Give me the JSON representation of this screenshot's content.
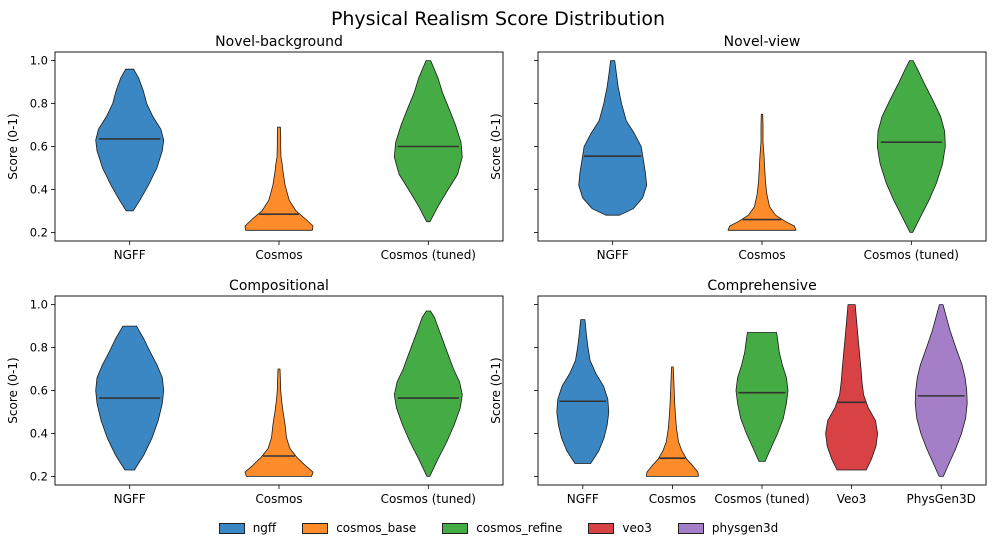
{
  "chart_data": {
    "type": "violin",
    "title": "Physical Realism Score Distribution",
    "ylabel": "Score (0-1)",
    "legend": {
      "placement": "bottom-center",
      "entries": [
        {
          "label": "ngff",
          "color": "#3a87c3"
        },
        {
          "label": "cosmos_base",
          "color": "#ff8c2a"
        },
        {
          "label": "cosmos_refine",
          "color": "#45ab45"
        },
        {
          "label": "veo3",
          "color": "#d94244"
        },
        {
          "label": "physgen3d",
          "color": "#a47ec7"
        }
      ]
    },
    "subplots": [
      {
        "title": "Novel-background",
        "ylim": [
          0.16,
          1.04
        ],
        "yticks": [
          "0.2",
          "0.4",
          "0.6",
          "0.8",
          "1.0"
        ],
        "show_ytick_labels": true,
        "categories": [
          "NGFF",
          "Cosmos",
          "Cosmos (tuned)"
        ],
        "violins": [
          {
            "label": "NGFF",
            "series": "ngff",
            "color": "#3a87c3",
            "median": 0.635,
            "profile": [
              [
                0.3,
                0.1
              ],
              [
                0.35,
                0.3
              ],
              [
                0.42,
                0.55
              ],
              [
                0.5,
                0.8
              ],
              [
                0.58,
                0.96
              ],
              [
                0.63,
                1.0
              ],
              [
                0.68,
                0.92
              ],
              [
                0.74,
                0.68
              ],
              [
                0.8,
                0.5
              ],
              [
                0.86,
                0.4
              ],
              [
                0.92,
                0.26
              ],
              [
                0.96,
                0.12
              ]
            ]
          },
          {
            "label": "Cosmos",
            "series": "cosmos_base",
            "color": "#ff8c2a",
            "median": 0.285,
            "profile": [
              [
                0.21,
                0.98
              ],
              [
                0.23,
                1.0
              ],
              [
                0.26,
                0.8
              ],
              [
                0.3,
                0.5
              ],
              [
                0.35,
                0.3
              ],
              [
                0.42,
                0.18
              ],
              [
                0.48,
                0.12
              ],
              [
                0.52,
                0.09
              ],
              [
                0.55,
                0.06
              ],
              [
                0.6,
                0.05
              ],
              [
                0.65,
                0.05
              ],
              [
                0.69,
                0.04
              ]
            ]
          },
          {
            "label": "Cosmos (tuned)",
            "series": "cosmos_refine",
            "color": "#45ab45",
            "median": 0.6,
            "profile": [
              [
                0.25,
                0.05
              ],
              [
                0.32,
                0.28
              ],
              [
                0.4,
                0.58
              ],
              [
                0.47,
                0.86
              ],
              [
                0.55,
                1.0
              ],
              [
                0.62,
                0.96
              ],
              [
                0.7,
                0.8
              ],
              [
                0.78,
                0.6
              ],
              [
                0.85,
                0.42
              ],
              [
                0.92,
                0.28
              ],
              [
                1.0,
                0.07
              ]
            ]
          }
        ]
      },
      {
        "title": "Novel-view",
        "ylim": [
          0.16,
          1.04
        ],
        "yticks": [
          "0.2",
          "0.4",
          "0.6",
          "0.8",
          "1.0"
        ],
        "show_ytick_labels": false,
        "categories": [
          "NGFF",
          "Cosmos",
          "Cosmos (tuned)"
        ],
        "violins": [
          {
            "label": "NGFF",
            "series": "ngff",
            "color": "#3a87c3",
            "median": 0.555,
            "profile": [
              [
                0.28,
                0.2
              ],
              [
                0.31,
                0.6
              ],
              [
                0.36,
                0.88
              ],
              [
                0.42,
                1.0
              ],
              [
                0.48,
                0.96
              ],
              [
                0.54,
                0.9
              ],
              [
                0.6,
                0.84
              ],
              [
                0.66,
                0.64
              ],
              [
                0.72,
                0.4
              ],
              [
                0.8,
                0.26
              ],
              [
                0.88,
                0.16
              ],
              [
                0.95,
                0.1
              ],
              [
                1.0,
                0.06
              ]
            ]
          },
          {
            "label": "Cosmos",
            "series": "cosmos_base",
            "color": "#ff8c2a",
            "median": 0.26,
            "profile": [
              [
                0.21,
                1.0
              ],
              [
                0.23,
                0.95
              ],
              [
                0.25,
                0.7
              ],
              [
                0.28,
                0.4
              ],
              [
                0.32,
                0.22
              ],
              [
                0.38,
                0.14
              ],
              [
                0.44,
                0.1
              ],
              [
                0.5,
                0.08
              ],
              [
                0.56,
                0.06
              ],
              [
                0.62,
                0.03
              ],
              [
                0.7,
                0.03
              ],
              [
                0.75,
                0.02
              ]
            ]
          },
          {
            "label": "Cosmos (tuned)",
            "series": "cosmos_refine",
            "color": "#45ab45",
            "median": 0.62,
            "profile": [
              [
                0.2,
                0.04
              ],
              [
                0.27,
                0.26
              ],
              [
                0.35,
                0.52
              ],
              [
                0.43,
                0.74
              ],
              [
                0.52,
                0.92
              ],
              [
                0.6,
                1.0
              ],
              [
                0.67,
                0.98
              ],
              [
                0.74,
                0.86
              ],
              [
                0.82,
                0.62
              ],
              [
                0.9,
                0.36
              ],
              [
                0.96,
                0.18
              ],
              [
                1.0,
                0.05
              ]
            ]
          }
        ]
      },
      {
        "title": "Compositional",
        "ylim": [
          0.16,
          1.04
        ],
        "yticks": [
          "0.2",
          "0.4",
          "0.6",
          "0.8",
          "1.0"
        ],
        "show_ytick_labels": true,
        "categories": [
          "NGFF",
          "Cosmos",
          "Cosmos (tuned)"
        ],
        "violins": [
          {
            "label": "NGFF",
            "series": "ngff",
            "color": "#3a87c3",
            "median": 0.565,
            "profile": [
              [
                0.23,
                0.14
              ],
              [
                0.3,
                0.42
              ],
              [
                0.38,
                0.66
              ],
              [
                0.46,
                0.84
              ],
              [
                0.54,
                0.96
              ],
              [
                0.6,
                1.0
              ],
              [
                0.66,
                0.96
              ],
              [
                0.72,
                0.8
              ],
              [
                0.78,
                0.6
              ],
              [
                0.84,
                0.42
              ],
              [
                0.9,
                0.2
              ]
            ]
          },
          {
            "label": "Cosmos",
            "series": "cosmos_base",
            "color": "#ff8c2a",
            "median": 0.295,
            "profile": [
              [
                0.2,
                0.96
              ],
              [
                0.22,
                1.0
              ],
              [
                0.25,
                0.78
              ],
              [
                0.29,
                0.52
              ],
              [
                0.33,
                0.32
              ],
              [
                0.38,
                0.22
              ],
              [
                0.44,
                0.18
              ],
              [
                0.5,
                0.12
              ],
              [
                0.55,
                0.08
              ],
              [
                0.6,
                0.05
              ],
              [
                0.65,
                0.04
              ],
              [
                0.7,
                0.03
              ]
            ]
          },
          {
            "label": "Cosmos (tuned)",
            "series": "cosmos_refine",
            "color": "#45ab45",
            "median": 0.565,
            "profile": [
              [
                0.2,
                0.04
              ],
              [
                0.28,
                0.28
              ],
              [
                0.36,
                0.54
              ],
              [
                0.44,
                0.76
              ],
              [
                0.52,
                0.94
              ],
              [
                0.58,
                1.0
              ],
              [
                0.64,
                0.92
              ],
              [
                0.7,
                0.74
              ],
              [
                0.76,
                0.6
              ],
              [
                0.82,
                0.46
              ],
              [
                0.88,
                0.32
              ],
              [
                0.94,
                0.18
              ],
              [
                0.97,
                0.06
              ]
            ]
          }
        ]
      },
      {
        "title": "Comprehensive",
        "ylim": [
          0.16,
          1.04
        ],
        "yticks": [
          "0.2",
          "0.4",
          "0.6",
          "0.8",
          "1.0"
        ],
        "show_ytick_labels": false,
        "categories": [
          "NGFF",
          "Cosmos",
          "Cosmos (tuned)",
          "Veo3",
          "PhysGen3D"
        ],
        "violins": [
          {
            "label": "NGFF",
            "series": "ngff",
            "color": "#3a87c3",
            "median": 0.55,
            "profile": [
              [
                0.26,
                0.3
              ],
              [
                0.32,
                0.62
              ],
              [
                0.38,
                0.82
              ],
              [
                0.44,
                0.94
              ],
              [
                0.5,
                1.0
              ],
              [
                0.56,
                0.96
              ],
              [
                0.62,
                0.8
              ],
              [
                0.68,
                0.5
              ],
              [
                0.74,
                0.28
              ],
              [
                0.8,
                0.2
              ],
              [
                0.86,
                0.14
              ],
              [
                0.93,
                0.08
              ]
            ]
          },
          {
            "label": "Cosmos",
            "series": "cosmos_base",
            "color": "#ff8c2a",
            "median": 0.285,
            "profile": [
              [
                0.2,
                1.0
              ],
              [
                0.22,
                0.98
              ],
              [
                0.25,
                0.78
              ],
              [
                0.28,
                0.55
              ],
              [
                0.32,
                0.36
              ],
              [
                0.36,
                0.24
              ],
              [
                0.42,
                0.16
              ],
              [
                0.48,
                0.12
              ],
              [
                0.54,
                0.09
              ],
              [
                0.6,
                0.07
              ],
              [
                0.66,
                0.05
              ],
              [
                0.71,
                0.03
              ]
            ]
          },
          {
            "label": "Cosmos (tuned)",
            "series": "cosmos_refine",
            "color": "#45ab45",
            "median": 0.59,
            "profile": [
              [
                0.27,
                0.12
              ],
              [
                0.33,
                0.34
              ],
              [
                0.4,
                0.6
              ],
              [
                0.47,
                0.82
              ],
              [
                0.54,
                0.94
              ],
              [
                0.6,
                1.0
              ],
              [
                0.66,
                0.94
              ],
              [
                0.72,
                0.78
              ],
              [
                0.78,
                0.66
              ],
              [
                0.84,
                0.6
              ],
              [
                0.87,
                0.56
              ]
            ]
          },
          {
            "label": "Veo3",
            "series": "veo3",
            "color": "#d94244",
            "median": 0.545,
            "profile": [
              [
                0.23,
                0.56
              ],
              [
                0.28,
                0.76
              ],
              [
                0.34,
                0.94
              ],
              [
                0.4,
                1.0
              ],
              [
                0.46,
                0.92
              ],
              [
                0.52,
                0.64
              ],
              [
                0.58,
                0.46
              ],
              [
                0.64,
                0.4
              ],
              [
                0.7,
                0.36
              ],
              [
                0.78,
                0.3
              ],
              [
                0.86,
                0.24
              ],
              [
                0.94,
                0.18
              ],
              [
                1.0,
                0.14
              ]
            ]
          },
          {
            "label": "PhysGen3D",
            "series": "physgen3d",
            "color": "#a47ec7",
            "median": 0.575,
            "profile": [
              [
                0.2,
                0.08
              ],
              [
                0.26,
                0.3
              ],
              [
                0.33,
                0.56
              ],
              [
                0.4,
                0.78
              ],
              [
                0.47,
                0.94
              ],
              [
                0.54,
                1.0
              ],
              [
                0.6,
                0.98
              ],
              [
                0.66,
                0.92
              ],
              [
                0.72,
                0.8
              ],
              [
                0.8,
                0.56
              ],
              [
                0.88,
                0.34
              ],
              [
                0.95,
                0.18
              ],
              [
                1.0,
                0.07
              ]
            ]
          }
        ]
      }
    ]
  }
}
